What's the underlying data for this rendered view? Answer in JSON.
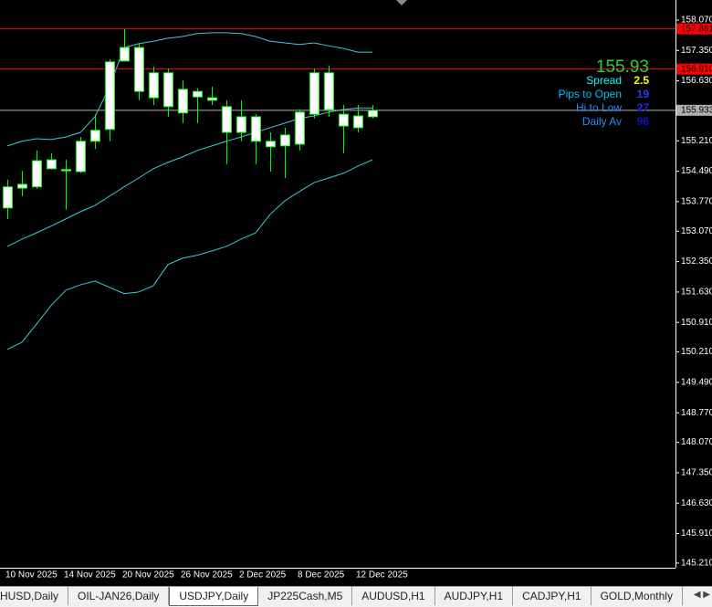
{
  "chart_data": {
    "type": "candlestick",
    "categories": [
      "10 Nov 2025",
      null,
      null,
      null,
      "14 Nov 2025",
      null,
      null,
      null,
      "20 Nov 2025",
      null,
      null,
      null,
      "26 Nov 2025",
      null,
      null,
      null,
      "2 Dec 2025",
      null,
      null,
      null,
      "8 Dec 2025",
      null,
      null,
      null,
      "12 Dec 2025",
      null
    ],
    "open": [
      153.62,
      154.09,
      154.12,
      154.76,
      154.53,
      154.48,
      155.2,
      155.48,
      157.1,
      157.42,
      156.82,
      156.82,
      155.87,
      156.38,
      156.23,
      156.02,
      155.41,
      155.78,
      155.2,
      155.09,
      155.13,
      155.84,
      156.82,
      155.84,
      155.52,
      155.78
    ],
    "high": [
      154.29,
      154.5,
      154.98,
      154.92,
      154.76,
      155.3,
      155.84,
      157.14,
      157.85,
      157.51,
      156.97,
      156.92,
      156.64,
      156.45,
      156.49,
      156.17,
      156.17,
      155.84,
      155.41,
      155.52,
      155.95,
      156.92,
      156.99,
      156.06,
      156.06,
      156.06
    ],
    "low": [
      153.36,
      153.9,
      154.07,
      154.53,
      153.58,
      154.44,
      155.02,
      155.2,
      157.1,
      156.17,
      156.06,
      155.78,
      155.63,
      155.63,
      156.06,
      154.66,
      155.2,
      154.66,
      154.48,
      154.33,
      154.98,
      155.74,
      155.78,
      154.92,
      155.41,
      155.74
    ],
    "close": [
      154.12,
      154.18,
      154.74,
      154.55,
      154.5,
      155.2,
      155.46,
      157.08,
      157.42,
      156.38,
      156.23,
      156.02,
      156.43,
      156.25,
      156.17,
      155.41,
      155.78,
      155.2,
      155.07,
      155.35,
      155.89,
      156.82,
      155.95,
      155.56,
      155.8,
      155.93
    ],
    "body_color": "#ffffff",
    "wick_color": "#00ff00",
    "series": [
      {
        "color": "#3fc8d8",
        "values": [
          155.09,
          155.2,
          155.26,
          155.24,
          155.3,
          155.41,
          155.78,
          156.49,
          157.42,
          157.51,
          157.57,
          157.64,
          157.68,
          157.75,
          157.77,
          157.77,
          157.75,
          157.68,
          157.57,
          157.53,
          157.49,
          157.53,
          157.46,
          157.4,
          157.31,
          157.31
        ]
      },
      {
        "color": "#3fc8d8",
        "values": [
          152.71,
          152.88,
          153.03,
          153.19,
          153.36,
          153.53,
          153.68,
          153.9,
          154.12,
          154.33,
          154.55,
          154.7,
          154.83,
          154.98,
          155.09,
          155.2,
          155.3,
          155.41,
          155.52,
          155.63,
          155.74,
          155.8,
          155.89,
          155.95,
          155.99,
          155.99
        ]
      },
      {
        "color": "#3fc8d8",
        "values": [
          150.27,
          150.44,
          150.87,
          151.31,
          151.67,
          151.8,
          151.89,
          151.74,
          151.59,
          151.63,
          151.78,
          152.28,
          152.43,
          152.5,
          152.6,
          152.71,
          152.88,
          153.03,
          153.47,
          153.79,
          154.01,
          154.22,
          154.33,
          154.44,
          154.61,
          154.76
        ]
      }
    ],
    "ylim": [
      145.1,
      158.545
    ],
    "yticks": [
      {
        "value": 158.07,
        "label": "158.070"
      },
      {
        "value": 157.35,
        "label": "157.350"
      },
      {
        "value": 156.63,
        "label": "156.630"
      },
      {
        "value": 155.21,
        "label": "155.210"
      },
      {
        "value": 154.49,
        "label": "154.490"
      },
      {
        "value": 153.77,
        "label": "153.770"
      },
      {
        "value": 153.07,
        "label": "153.070"
      },
      {
        "value": 152.35,
        "label": "152.350"
      },
      {
        "value": 151.63,
        "label": "151.630"
      },
      {
        "value": 150.91,
        "label": "150.910"
      },
      {
        "value": 150.21,
        "label": "150.210"
      },
      {
        "value": 149.49,
        "label": "149.490"
      },
      {
        "value": 148.77,
        "label": "148.770"
      },
      {
        "value": 148.07,
        "label": "148.070"
      },
      {
        "value": 147.35,
        "label": "147.350"
      },
      {
        "value": 146.63,
        "label": "146.630"
      },
      {
        "value": 145.91,
        "label": "145.910"
      },
      {
        "value": 145.21,
        "label": "145.210"
      }
    ],
    "price_lines": [
      {
        "value": 157.861,
        "label": "157.861",
        "color": "#ff0000"
      },
      {
        "value": 156.91,
        "label": "156.910",
        "color": "#ff0000"
      },
      {
        "value": 155.933,
        "label": "155.933",
        "color": "#b0b0b0"
      }
    ],
    "info": {
      "price": 155.93,
      "rows": [
        {
          "label": "Spread",
          "value": 2.5
        },
        {
          "label": "Pips to Open",
          "value": 19
        },
        {
          "label": "Hi to Low",
          "value": 27
        },
        {
          "label": "Daily Av",
          "value": 96
        }
      ]
    }
  },
  "tabs": [
    "HUSD,Daily",
    "OIL-JAN26,Daily",
    "USDJPY,Daily",
    "JP225Cash,M5",
    "AUDUSD,H1",
    "AUDJPY,H1",
    "CADJPY,H1",
    "GOLD,Monthly"
  ],
  "active_tab": 2
}
